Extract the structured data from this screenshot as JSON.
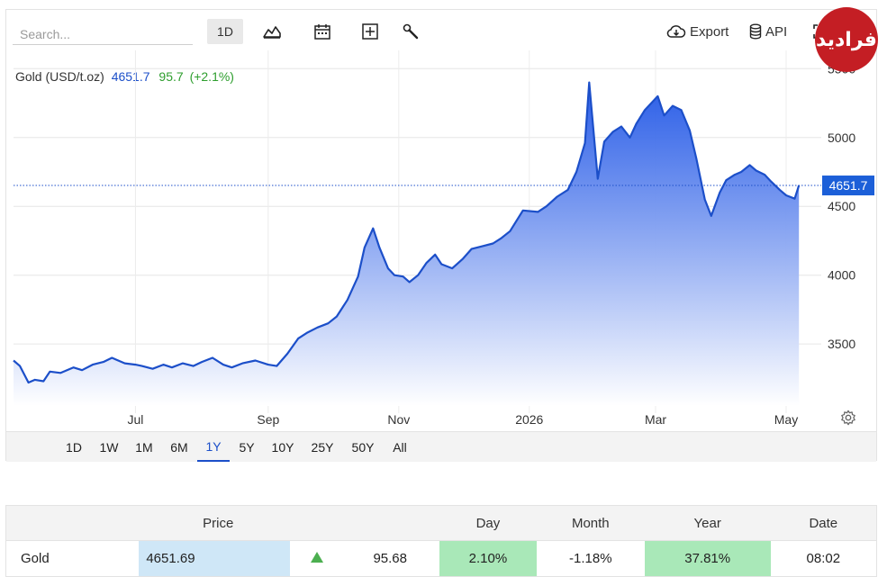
{
  "toolbar": {
    "search_placeholder": "Search...",
    "interval_label": "1D",
    "export_label": "Export",
    "api_label": "API",
    "icons": [
      "chart-area-icon",
      "calendar-icon",
      "add-compare-icon",
      "wrench-icon",
      "download-cloud-icon",
      "database-icon",
      "expand-icon"
    ]
  },
  "logo": {
    "text": "فرادید"
  },
  "series": {
    "name": "Gold (USD/t.oz)",
    "last": "4651.7",
    "change": "95.7",
    "change_pct": "(+2.1%)",
    "last_tag": "4651.7"
  },
  "ranges": [
    "1D",
    "1W",
    "1M",
    "6M",
    "1Y",
    "5Y",
    "10Y",
    "25Y",
    "50Y",
    "All"
  ],
  "active_range": "1Y",
  "table": {
    "headers": {
      "name": "",
      "price": "Price",
      "arrow": "",
      "change": "",
      "day": "Day",
      "month": "Month",
      "year": "Year",
      "date": "Date"
    },
    "row": {
      "name": "Gold",
      "price": "4651.69",
      "change": "95.68",
      "day": "2.10%",
      "month": "-1.18%",
      "year": "37.81%",
      "date": "08:02"
    }
  },
  "chart_data": {
    "type": "area",
    "series_name": "Gold (USD/t.oz)",
    "ylim": [
      3050,
      5600
    ],
    "y_ticks": [
      3500,
      4000,
      4500,
      5000,
      5500
    ],
    "x_ticks": [
      "Jul",
      "Sep",
      "Nov",
      "2026",
      "Mar",
      "May"
    ],
    "last_value": 4651.7,
    "colors": {
      "line": "#1c4fc9",
      "fill_top": "#1f55e6",
      "fill_bottom": "#ffffff",
      "last_tag": "#1c5fd8"
    },
    "points": [
      [
        "2025-05-05",
        3380
      ],
      [
        "2025-05-08",
        3340
      ],
      [
        "2025-05-12",
        3220
      ],
      [
        "2025-05-15",
        3240
      ],
      [
        "2025-05-19",
        3230
      ],
      [
        "2025-05-22",
        3300
      ],
      [
        "2025-05-27",
        3290
      ],
      [
        "2025-06-02",
        3330
      ],
      [
        "2025-06-06",
        3310
      ],
      [
        "2025-06-11",
        3350
      ],
      [
        "2025-06-16",
        3370
      ],
      [
        "2025-06-20",
        3400
      ],
      [
        "2025-06-26",
        3360
      ],
      [
        "2025-07-01",
        3350
      ],
      [
        "2025-07-04",
        3340
      ],
      [
        "2025-07-09",
        3320
      ],
      [
        "2025-07-14",
        3350
      ],
      [
        "2025-07-18",
        3330
      ],
      [
        "2025-07-23",
        3360
      ],
      [
        "2025-07-28",
        3340
      ],
      [
        "2025-08-01",
        3370
      ],
      [
        "2025-08-06",
        3400
      ],
      [
        "2025-08-11",
        3350
      ],
      [
        "2025-08-15",
        3330
      ],
      [
        "2025-08-20",
        3360
      ],
      [
        "2025-08-26",
        3380
      ],
      [
        "2025-09-01",
        3350
      ],
      [
        "2025-09-05",
        3340
      ],
      [
        "2025-09-10",
        3430
      ],
      [
        "2025-09-15",
        3540
      ],
      [
        "2025-09-19",
        3580
      ],
      [
        "2025-09-24",
        3620
      ],
      [
        "2025-09-29",
        3650
      ],
      [
        "2025-10-03",
        3700
      ],
      [
        "2025-10-08",
        3820
      ],
      [
        "2025-10-13",
        3990
      ],
      [
        "2025-10-16",
        4200
      ],
      [
        "2025-10-20",
        4340
      ],
      [
        "2025-10-23",
        4200
      ],
      [
        "2025-10-27",
        4050
      ],
      [
        "2025-10-30",
        4000
      ],
      [
        "2025-11-03",
        3990
      ],
      [
        "2025-11-06",
        3950
      ],
      [
        "2025-11-10",
        4000
      ],
      [
        "2025-11-14",
        4090
      ],
      [
        "2025-11-18",
        4150
      ],
      [
        "2025-11-21",
        4080
      ],
      [
        "2025-11-26",
        4050
      ],
      [
        "2025-12-01",
        4120
      ],
      [
        "2025-12-05",
        4190
      ],
      [
        "2025-12-10",
        4210
      ],
      [
        "2025-12-15",
        4230
      ],
      [
        "2025-12-19",
        4270
      ],
      [
        "2025-12-23",
        4320
      ],
      [
        "2025-12-29",
        4470
      ],
      [
        "2026-01-05",
        4460
      ],
      [
        "2026-01-09",
        4500
      ],
      [
        "2026-01-14",
        4570
      ],
      [
        "2026-01-19",
        4620
      ],
      [
        "2026-01-23",
        4750
      ],
      [
        "2026-01-27",
        4960
      ],
      [
        "2026-01-29",
        5400
      ],
      [
        "2026-02-02",
        4700
      ],
      [
        "2026-02-05",
        4970
      ],
      [
        "2026-02-09",
        5040
      ],
      [
        "2026-02-13",
        5080
      ],
      [
        "2026-02-17",
        5000
      ],
      [
        "2026-02-20",
        5100
      ],
      [
        "2026-02-24",
        5200
      ],
      [
        "2026-03-02",
        5300
      ],
      [
        "2026-03-05",
        5160
      ],
      [
        "2026-03-09",
        5230
      ],
      [
        "2026-03-13",
        5200
      ],
      [
        "2026-03-17",
        5050
      ],
      [
        "2026-03-20",
        4850
      ],
      [
        "2026-03-24",
        4550
      ],
      [
        "2026-03-27",
        4430
      ],
      [
        "2026-03-31",
        4600
      ],
      [
        "2026-04-03",
        4690
      ],
      [
        "2026-04-07",
        4730
      ],
      [
        "2026-04-10",
        4750
      ],
      [
        "2026-04-14",
        4800
      ],
      [
        "2026-04-17",
        4760
      ],
      [
        "2026-04-21",
        4730
      ],
      [
        "2026-04-24",
        4680
      ],
      [
        "2026-04-28",
        4620
      ],
      [
        "2026-05-01",
        4580
      ],
      [
        "2026-05-05",
        4556
      ],
      [
        "2026-05-07",
        4651.7
      ]
    ]
  }
}
